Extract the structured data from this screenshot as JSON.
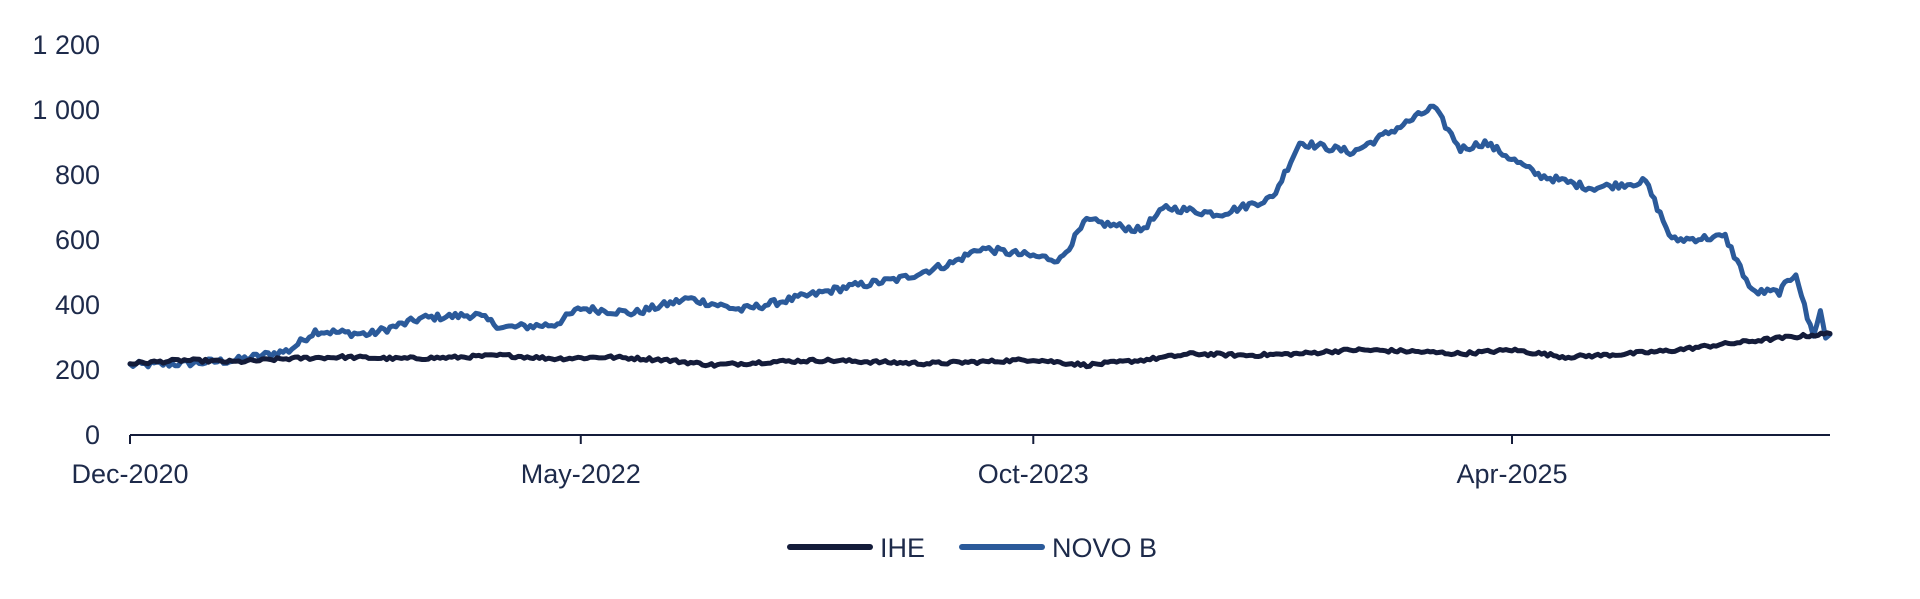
{
  "chart_data": {
    "type": "line",
    "title": "",
    "xlabel": "",
    "ylabel": "",
    "x_ticks": [
      "Dec-2020",
      "May-2022",
      "Oct-2023",
      "Apr-2025"
    ],
    "x_tick_dates": [
      "2020-12-01",
      "2022-05-01",
      "2023-10-01",
      "2025-04-01"
    ],
    "x_range": [
      "2020-12-01",
      "2026-03-31"
    ],
    "y_ticks": [
      "0",
      "200",
      "400",
      "600",
      "800",
      "1 000",
      "1 200"
    ],
    "y_tick_values": [
      0,
      200,
      400,
      600,
      800,
      1000,
      1200
    ],
    "ylim": [
      0,
      1200
    ],
    "grid": false,
    "legend_position": "bottom-center",
    "series": [
      {
        "name": "IHE",
        "color": "#141c3a",
        "points": [
          [
            "2020-12-01",
            220
          ],
          [
            "2021-02-01",
            230
          ],
          [
            "2021-04-01",
            225
          ],
          [
            "2021-06-01",
            235
          ],
          [
            "2021-08-01",
            240
          ],
          [
            "2021-10-01",
            235
          ],
          [
            "2021-12-01",
            238
          ],
          [
            "2022-02-01",
            245
          ],
          [
            "2022-04-01",
            235
          ],
          [
            "2022-06-01",
            240
          ],
          [
            "2022-08-01",
            232
          ],
          [
            "2022-10-01",
            215
          ],
          [
            "2022-12-01",
            225
          ],
          [
            "2023-02-01",
            230
          ],
          [
            "2023-04-01",
            225
          ],
          [
            "2023-06-01",
            220
          ],
          [
            "2023-08-01",
            225
          ],
          [
            "2023-10-01",
            232
          ],
          [
            "2023-12-01",
            215
          ],
          [
            "2024-02-01",
            230
          ],
          [
            "2024-04-01",
            250
          ],
          [
            "2024-06-01",
            245
          ],
          [
            "2024-08-01",
            250
          ],
          [
            "2024-10-01",
            262
          ],
          [
            "2024-12-01",
            258
          ],
          [
            "2025-02-01",
            250
          ],
          [
            "2025-04-01",
            262
          ],
          [
            "2025-06-01",
            240
          ],
          [
            "2025-08-01",
            248
          ],
          [
            "2025-10-01",
            260
          ],
          [
            "2025-12-01",
            280
          ],
          [
            "2026-02-01",
            298
          ],
          [
            "2026-03-31",
            312
          ]
        ]
      },
      {
        "name": "NOVO B",
        "color": "#2b5a9a",
        "points": [
          [
            "2020-12-01",
            215
          ],
          [
            "2021-02-01",
            220
          ],
          [
            "2021-04-01",
            230
          ],
          [
            "2021-06-01",
            260
          ],
          [
            "2021-07-01",
            320
          ],
          [
            "2021-09-01",
            310
          ],
          [
            "2021-11-01",
            360
          ],
          [
            "2022-01-01",
            370
          ],
          [
            "2022-02-01",
            330
          ],
          [
            "2022-04-01",
            340
          ],
          [
            "2022-05-01",
            390
          ],
          [
            "2022-07-01",
            375
          ],
          [
            "2022-09-01",
            420
          ],
          [
            "2022-11-01",
            385
          ],
          [
            "2023-01-01",
            420
          ],
          [
            "2023-03-01",
            455
          ],
          [
            "2023-05-01",
            480
          ],
          [
            "2023-07-01",
            530
          ],
          [
            "2023-08-01",
            575
          ],
          [
            "2023-10-01",
            550
          ],
          [
            "2023-11-01",
            540
          ],
          [
            "2023-12-01",
            660
          ],
          [
            "2024-02-01",
            630
          ],
          [
            "2024-03-01",
            700
          ],
          [
            "2024-05-01",
            680
          ],
          [
            "2024-07-01",
            730
          ],
          [
            "2024-08-01",
            900
          ],
          [
            "2024-10-01",
            870
          ],
          [
            "2024-12-01",
            960
          ],
          [
            "2025-01-01",
            1010
          ],
          [
            "2025-02-01",
            880
          ],
          [
            "2025-03-01",
            900
          ],
          [
            "2025-05-01",
            800
          ],
          [
            "2025-07-01",
            760
          ],
          [
            "2025-09-01",
            780
          ],
          [
            "2025-10-01",
            600
          ],
          [
            "2025-12-01",
            610
          ],
          [
            "2026-01-01",
            440
          ],
          [
            "2026-02-01",
            440
          ]
        ]
      }
    ],
    "series_tail": {
      "NOVO B": [
        [
          "2026-02-20",
          500
        ],
        [
          "2026-03-05",
          360
        ],
        [
          "2026-03-12",
          310
        ],
        [
          "2026-03-20",
          380
        ],
        [
          "2026-03-26",
          300
        ],
        [
          "2026-03-31",
          310
        ]
      ]
    }
  }
}
